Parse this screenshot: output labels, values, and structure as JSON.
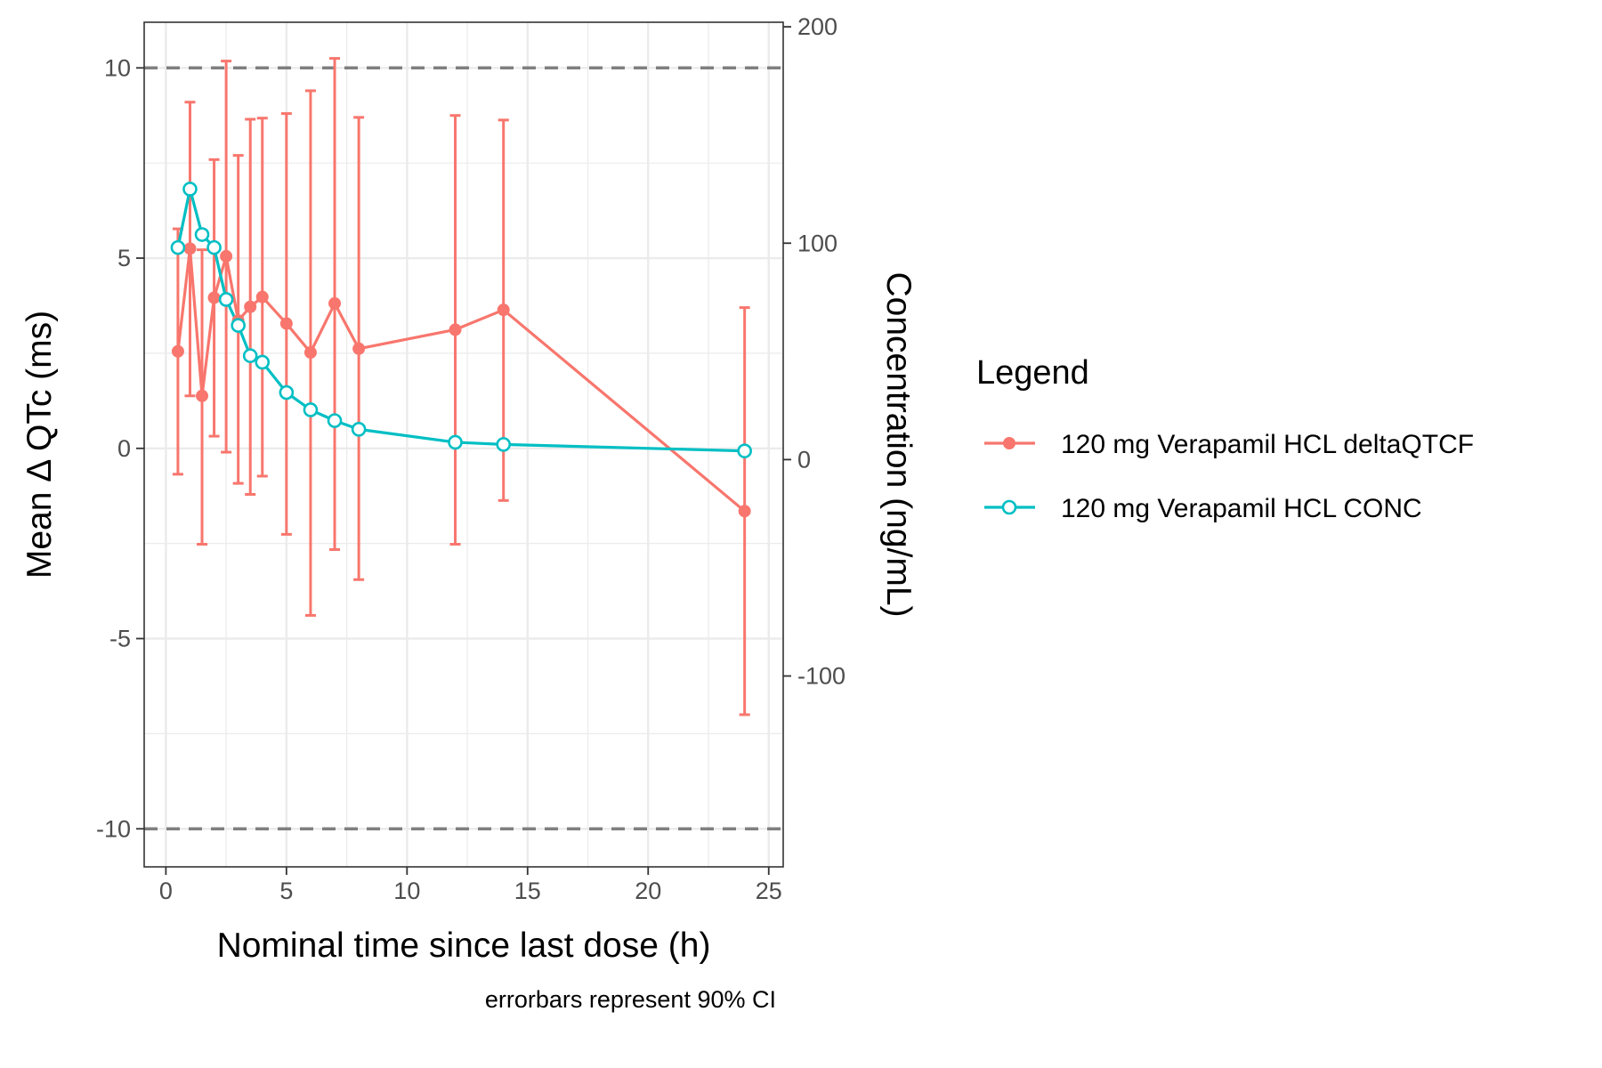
{
  "chart_data": {
    "type": "line",
    "xlabel": "Nominal time since last dose (h)",
    "ylabel": "Mean Δ QTc (ms)",
    "y2label": "Concentration (ng/mL)",
    "caption": "errorbars represent 90% CI",
    "xlim": [
      -0.9,
      25.6
    ],
    "ylim": [
      -11,
      11.2
    ],
    "y2lim": [
      -188.2,
      202.1
    ],
    "x_ticks": [
      0,
      5,
      10,
      15,
      20,
      25
    ],
    "y_ticks": [
      -10,
      -5,
      0,
      5,
      10
    ],
    "y2_ticks": [
      -100,
      0,
      100,
      200
    ],
    "reference_lines": [
      10,
      -10
    ],
    "grid": true,
    "legend": {
      "title": "Legend",
      "position": "right",
      "entries": [
        {
          "label": "120 mg Verapamil HCL deltaQTCF",
          "color": "#f8766d",
          "marker": "filled-circle"
        },
        {
          "label": "120 mg Verapamil HCL CONC",
          "color": "#00bfc4",
          "marker": "open-circle"
        }
      ]
    },
    "series": [
      {
        "name": "120 mg Verapamil HCL deltaQTCF",
        "axis": "left",
        "color": "#f8766d",
        "x": [
          0.5,
          1,
          1.5,
          2,
          2.5,
          3,
          3.5,
          4,
          5,
          6,
          7,
          8,
          12,
          14,
          24
        ],
        "y": [
          2.55,
          5.25,
          1.38,
          3.96,
          5.05,
          3.36,
          3.72,
          3.98,
          3.28,
          2.52,
          3.81,
          2.62,
          3.12,
          3.64,
          -1.65
        ],
        "lower": [
          -0.68,
          1.38,
          -2.52,
          0.32,
          -0.1,
          -0.92,
          -1.21,
          -0.73,
          -2.26,
          -4.39,
          -2.66,
          -3.45,
          -2.52,
          -1.37,
          -7.0
        ],
        "upper": [
          5.77,
          9.1,
          5.22,
          7.59,
          10.18,
          7.7,
          8.65,
          8.68,
          8.8,
          9.4,
          10.25,
          8.7,
          8.75,
          8.63,
          3.7
        ]
      },
      {
        "name": "120 mg Verapamil HCL CONC",
        "axis": "right",
        "color": "#00bfc4",
        "x": [
          0.5,
          1,
          1.5,
          2,
          2.5,
          3,
          3.5,
          4,
          5,
          6,
          7,
          8,
          12,
          14,
          24
        ],
        "y": [
          98,
          125,
          104,
          98,
          74,
          62,
          48,
          45,
          31,
          23,
          18,
          14,
          8,
          7,
          4
        ]
      }
    ]
  }
}
